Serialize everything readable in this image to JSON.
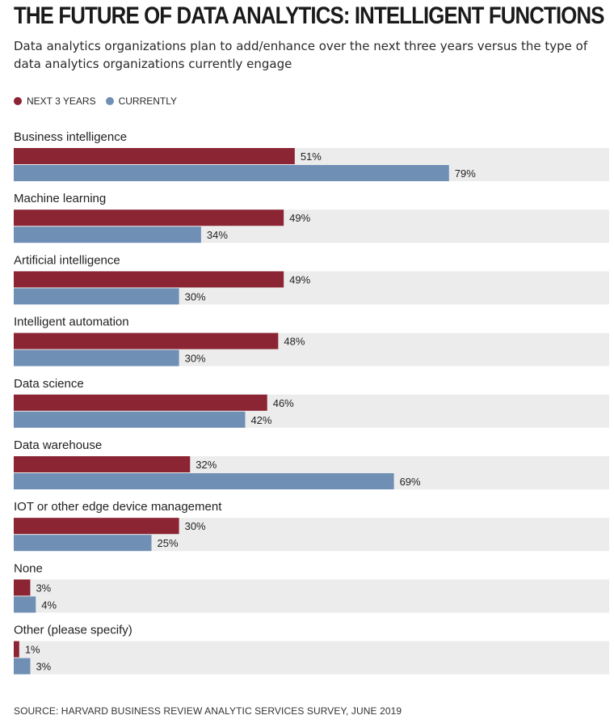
{
  "title": "THE FUTURE OF DATA ANALYTICS: INTELLIGENT FUNCTIONS",
  "subtitle": "Data analytics organizations plan to add/enhance over the next three years versus the type of data analytics organizations currently engage",
  "legend": [
    {
      "label": "NEXT 3 YEARS",
      "color": "#8b2433"
    },
    {
      "label": "CURRENTLY",
      "color": "#6f8fb5"
    }
  ],
  "source": "SOURCE: HARVARD BUSINESS REVIEW ANALYTIC SERVICES SURVEY, JUNE 2019",
  "colors": {
    "next3": "#8b2433",
    "currently": "#6f8fb5",
    "track": "#ececec"
  },
  "chart_data": {
    "type": "bar",
    "orientation": "horizontal",
    "categories": [
      "Business intelligence",
      "Machine learning",
      "Artificial intelligence",
      "Intelligent automation",
      "Data science",
      "Data warehouse",
      "IOT or other edge device management",
      "None",
      "Other (please specify)"
    ],
    "series": [
      {
        "name": "NEXT 3 YEARS",
        "values": [
          51,
          49,
          49,
          48,
          46,
          32,
          30,
          3,
          1
        ]
      },
      {
        "name": "CURRENTLY",
        "values": [
          79,
          34,
          30,
          30,
          42,
          69,
          25,
          4,
          3
        ]
      }
    ],
    "value_suffix": "%",
    "xlim": [
      0,
      100
    ],
    "grid": false,
    "legend_position": "top-left"
  }
}
